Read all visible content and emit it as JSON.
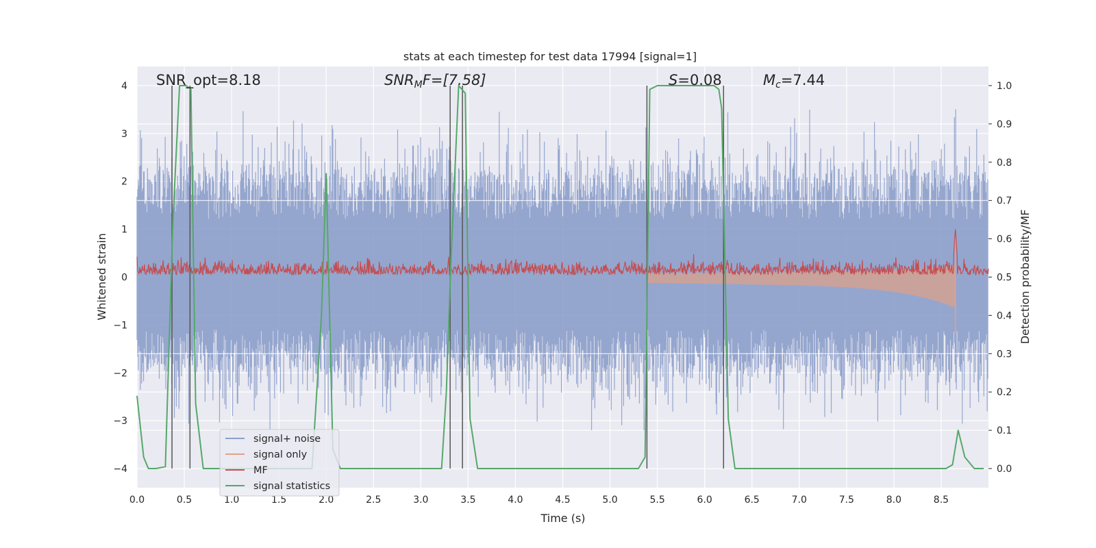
{
  "chart_data": {
    "type": "line",
    "title": "stats at each timestep for test data 17994 [signal=1]",
    "xlabel": "Time (s)",
    "ylabel_left": "Whitened strain",
    "ylabel_right": "Detection probability/MF",
    "xlim": [
      0.0,
      9.0
    ],
    "ylim_left": [
      -4.4,
      4.4
    ],
    "ylim_right": [
      -0.05,
      1.05
    ],
    "xticks": [
      "0.0",
      "0.5",
      "1.0",
      "1.5",
      "2.0",
      "2.5",
      "3.0",
      "3.5",
      "4.0",
      "4.5",
      "5.0",
      "5.5",
      "6.0",
      "6.5",
      "7.0",
      "7.5",
      "8.0",
      "8.5"
    ],
    "yticks_left": [
      "4",
      "3",
      "2",
      "1",
      "0",
      "−1",
      "−2",
      "−3",
      "−4"
    ],
    "yticks_right": [
      "1.0",
      "0.9",
      "0.8",
      "0.7",
      "0.6",
      "0.5",
      "0.4",
      "0.3",
      "0.2",
      "0.1",
      "0.0"
    ],
    "annotations": {
      "snr_opt": "SNR_opt=8.18",
      "snr_mf_a": "SNR",
      "snr_mf_b": "M",
      "snr_mf_c": "F=[7.58]",
      "s_stat_a": "S",
      "s_stat_b": "=0.08",
      "mc_a": "M",
      "mc_b": "c",
      "mc_c": "=7.44"
    },
    "legend": {
      "placement": "lower-left",
      "entries": [
        "signal+ noise",
        "signal only",
        "MF",
        "signal statistics"
      ]
    },
    "series": [
      {
        "name": "signal+ noise",
        "description": "whitened noisy strain, roughly symmetric band between about -2.9 and 3.6",
        "color": "#8c9fca",
        "envelope": {
          "typical_max": 2.2,
          "typical_min": -2.0,
          "peak_max": 3.6,
          "peak_min": -3.2
        }
      },
      {
        "name": "signal only",
        "description": "chirp signal growing toward merger near t=8.65 s",
        "color": "#e5a081",
        "merger_time": 8.65,
        "amplitude_start": 0.0,
        "amplitude_end": 1.2
      },
      {
        "name": "MF",
        "description": "matched filter output (right axis), noisy band around 0.52",
        "color": "#c44e52",
        "baseline": 0.5,
        "typical_max": 0.56,
        "peak": {
          "t": 8.65,
          "value": 0.63
        }
      },
      {
        "name": "signal statistics",
        "axis": "right",
        "color": "#55a868",
        "x": [
          0.0,
          0.07,
          0.12,
          0.2,
          0.3,
          0.38,
          0.45,
          0.52,
          0.57,
          0.62,
          0.7,
          0.8,
          1.85,
          1.95,
          2.0,
          2.07,
          2.15,
          3.22,
          3.27,
          3.32,
          3.4,
          3.47,
          3.52,
          3.6,
          5.3,
          5.37,
          5.42,
          5.5,
          6.1,
          6.15,
          6.18,
          6.25,
          6.32,
          8.45,
          8.55,
          8.62,
          8.68,
          8.75,
          8.85,
          8.95
        ],
        "y": [
          0.19,
          0.03,
          0.0,
          0.0,
          0.005,
          0.65,
          1.0,
          1.0,
          0.99,
          0.17,
          0.0,
          0.0,
          0.0,
          0.4,
          0.77,
          0.05,
          0.0,
          0.0,
          0.2,
          0.55,
          1.0,
          0.98,
          0.13,
          0.0,
          0.0,
          0.03,
          0.99,
          1.0,
          1.0,
          0.99,
          0.94,
          0.13,
          0.0,
          0.0,
          0.0,
          0.01,
          0.1,
          0.03,
          0.0,
          0.0
        ]
      }
    ],
    "vertical_lines": {
      "color": "#555555",
      "x": [
        0.37,
        0.56,
        3.31,
        3.44,
        5.39,
        6.2
      ]
    }
  }
}
